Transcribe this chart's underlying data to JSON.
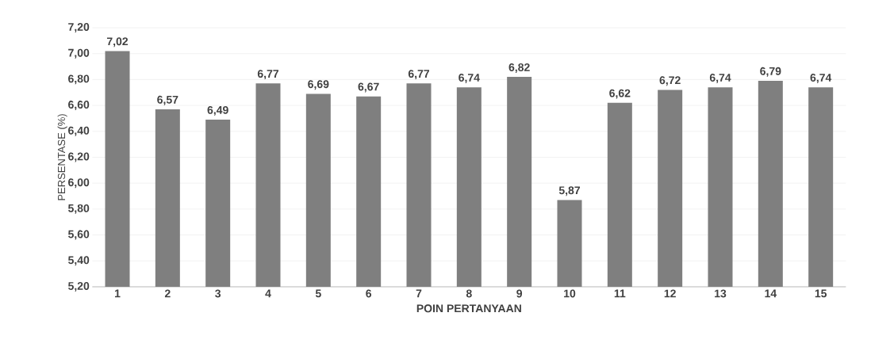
{
  "chart_data": {
    "type": "bar",
    "xlabel": "POIN PERTANYAAN",
    "ylabel": "PERSENTASE (%)",
    "categories": [
      "1",
      "2",
      "3",
      "4",
      "5",
      "6",
      "7",
      "8",
      "9",
      "10",
      "11",
      "12",
      "13",
      "14",
      "15"
    ],
    "values": [
      7.02,
      6.57,
      6.49,
      6.77,
      6.69,
      6.67,
      6.77,
      6.74,
      6.82,
      5.87,
      6.62,
      6.72,
      6.74,
      6.79,
      6.74
    ],
    "value_labels": [
      "7,02",
      "6,57",
      "6,49",
      "6,77",
      "6,69",
      "6,67",
      "6,77",
      "6,74",
      "6,82",
      "5,87",
      "6,62",
      "6,72",
      "6,74",
      "6,79",
      "6,74"
    ],
    "color": "#7f7f7f",
    "grid": "y",
    "ylim": [
      5.2,
      7.2
    ],
    "yticks": [
      {
        "value": 5.2,
        "label": "5,20"
      },
      {
        "value": 5.4,
        "label": "5,40"
      },
      {
        "value": 5.6,
        "label": "5,60"
      },
      {
        "value": 5.8,
        "label": "5,80"
      },
      {
        "value": 6.0,
        "label": "6,00"
      },
      {
        "value": 6.2,
        "label": "6,20"
      },
      {
        "value": 6.4,
        "label": "6,40"
      },
      {
        "value": 6.6,
        "label": "6,60"
      },
      {
        "value": 6.8,
        "label": "6,80"
      },
      {
        "value": 7.0,
        "label": "7,00"
      },
      {
        "value": 7.2,
        "label": "7,20"
      }
    ]
  }
}
